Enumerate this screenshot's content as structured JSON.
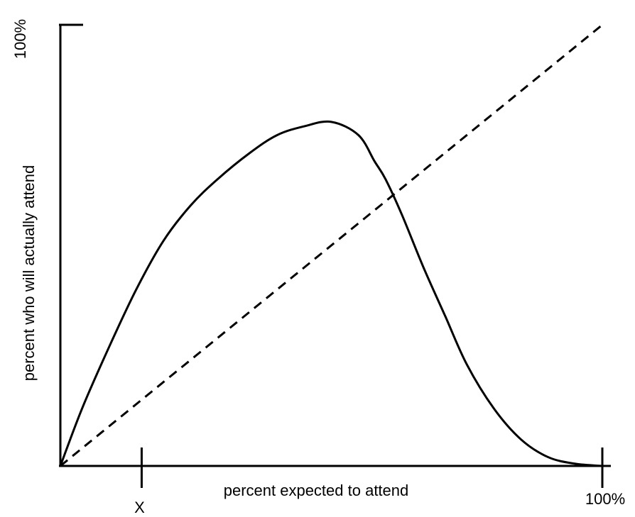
{
  "chart_data": {
    "type": "line",
    "title": "",
    "xlabel": "percent expected to attend",
    "ylabel": "percent  who will actually attend",
    "xlim": [
      0,
      100
    ],
    "ylim": [
      0,
      100
    ],
    "x_tick_labels": [
      {
        "value": 15,
        "label": "X"
      },
      {
        "value": 100,
        "label": "100%"
      }
    ],
    "y_tick_labels": [
      {
        "value": 100,
        "label": "100%"
      }
    ],
    "grid": false,
    "series": [
      {
        "style": "solid",
        "x": [
          0,
          4,
          9,
          14,
          19,
          24,
          29,
          35,
          40,
          45,
          50,
          55,
          58,
          60,
          63,
          67,
          71,
          75,
          80,
          85,
          90,
          95,
          100
        ],
        "y": [
          0,
          13,
          27,
          40,
          51,
          59,
          65,
          71,
          75,
          77,
          78,
          75,
          69,
          65,
          57,
          45,
          34,
          23,
          13,
          6,
          2,
          0.5,
          0
        ]
      },
      {
        "style": "dashed",
        "x": [
          0,
          100
        ],
        "y": [
          0,
          100
        ]
      }
    ]
  }
}
